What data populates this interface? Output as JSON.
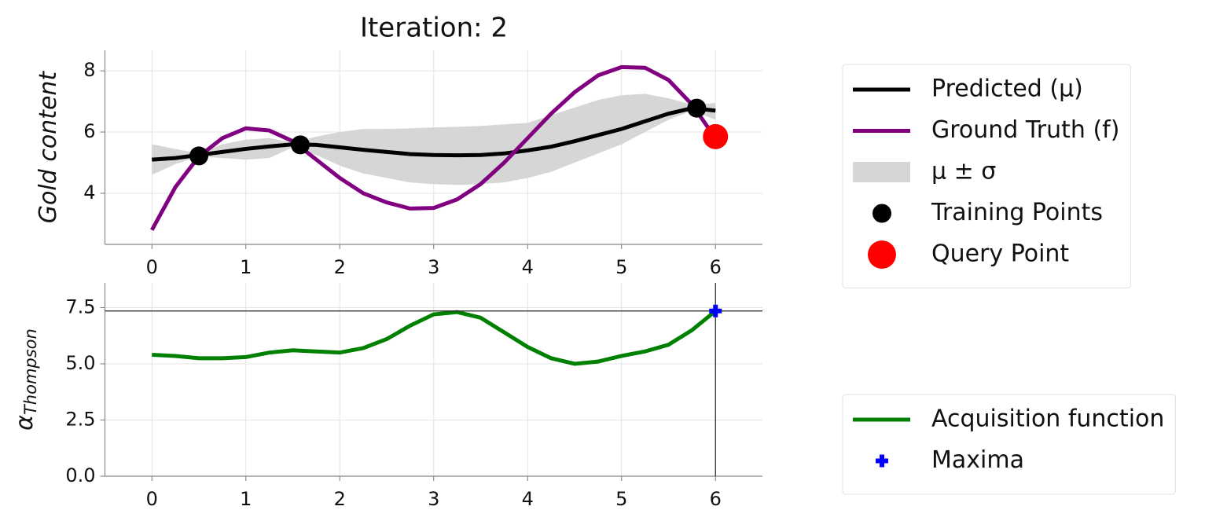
{
  "chart_data": [
    {
      "type": "line",
      "title": "Iteration: 2",
      "ylabel": "Gold content",
      "x": [
        0,
        0.25,
        0.5,
        0.75,
        1,
        1.25,
        1.5,
        1.75,
        2,
        2.25,
        2.5,
        2.75,
        3,
        3.25,
        3.5,
        3.75,
        4,
        4.25,
        4.5,
        4.75,
        5,
        5.25,
        5.5,
        5.75,
        6
      ],
      "xlim": [
        -0.5,
        6.5
      ],
      "xticks": [
        0,
        1,
        2,
        3,
        4,
        5,
        6
      ],
      "ylim": [
        2.33,
        8.67
      ],
      "yticks": [
        4,
        6,
        8
      ],
      "grid": true,
      "legend": "right",
      "series": [
        {
          "name": "Predicted (μ)",
          "type": "line",
          "color": "#000000",
          "values": [
            5.1,
            5.15,
            5.25,
            5.35,
            5.45,
            5.53,
            5.6,
            5.58,
            5.5,
            5.42,
            5.35,
            5.28,
            5.25,
            5.24,
            5.25,
            5.3,
            5.4,
            5.52,
            5.7,
            5.9,
            6.1,
            6.35,
            6.6,
            6.78,
            6.7
          ]
        },
        {
          "name": "Ground Truth (f)",
          "type": "line",
          "color": "#800080",
          "values": [
            2.8,
            4.2,
            5.2,
            5.8,
            6.12,
            6.05,
            5.7,
            5.1,
            4.5,
            4.0,
            3.7,
            3.5,
            3.52,
            3.8,
            4.3,
            5.0,
            5.8,
            6.6,
            7.3,
            7.85,
            8.12,
            8.1,
            7.7,
            6.9,
            5.8
          ]
        },
        {
          "name": "μ ± σ",
          "type": "band",
          "color": "#d6d6d6",
          "lower": [
            4.6,
            4.95,
            5.2,
            5.15,
            5.1,
            5.15,
            5.5,
            5.25,
            4.9,
            4.65,
            4.5,
            4.35,
            4.3,
            4.27,
            4.3,
            4.35,
            4.5,
            4.7,
            5.0,
            5.3,
            5.6,
            6.0,
            6.4,
            6.7,
            6.4
          ],
          "upper": [
            5.6,
            5.45,
            5.3,
            5.6,
            5.75,
            5.8,
            5.65,
            5.85,
            6.0,
            6.1,
            6.1,
            6.12,
            6.15,
            6.17,
            6.2,
            6.25,
            6.3,
            6.55,
            6.8,
            7.05,
            7.2,
            7.25,
            7.1,
            6.9,
            6.95
          ]
        },
        {
          "name": "Training Points",
          "type": "scatter",
          "color": "#000000",
          "x": [
            0.5,
            1.58,
            5.8
          ],
          "values": [
            5.22,
            5.58,
            6.78
          ]
        },
        {
          "name": "Query Point",
          "type": "scatter",
          "color": "#ff0000",
          "x": [
            6
          ],
          "values": [
            5.85
          ]
        }
      ]
    },
    {
      "type": "line",
      "ylabel": "α",
      "ylabel_subscript": "Thompson",
      "x": [
        0,
        0.25,
        0.5,
        0.75,
        1,
        1.25,
        1.5,
        1.75,
        2,
        2.25,
        2.5,
        2.75,
        3,
        3.25,
        3.5,
        3.75,
        4,
        4.25,
        4.5,
        4.75,
        5,
        5.25,
        5.5,
        5.75,
        6
      ],
      "xlim": [
        -0.5,
        6.5
      ],
      "xticks": [
        0,
        1,
        2,
        3,
        4,
        5,
        6
      ],
      "ylim": [
        0,
        8.6
      ],
      "yticks": [
        {
          "value": 0,
          "label": "0.0"
        },
        2.5,
        {
          "value": 5,
          "label": "5.0"
        },
        7.5
      ],
      "grid": true,
      "legend": "right",
      "series": [
        {
          "name": "Acquisition function",
          "type": "line",
          "color": "#008000",
          "values": [
            5.4,
            5.35,
            5.25,
            5.25,
            5.3,
            5.5,
            5.6,
            5.55,
            5.5,
            5.7,
            6.1,
            6.7,
            7.2,
            7.3,
            7.05,
            6.4,
            5.75,
            5.25,
            5.0,
            5.1,
            5.35,
            5.55,
            5.85,
            6.5,
            7.35
          ]
        },
        {
          "name": "Maxima",
          "type": "plus",
          "color": "#0000ff",
          "x": [
            6
          ],
          "values": [
            7.35
          ]
        }
      ]
    }
  ]
}
